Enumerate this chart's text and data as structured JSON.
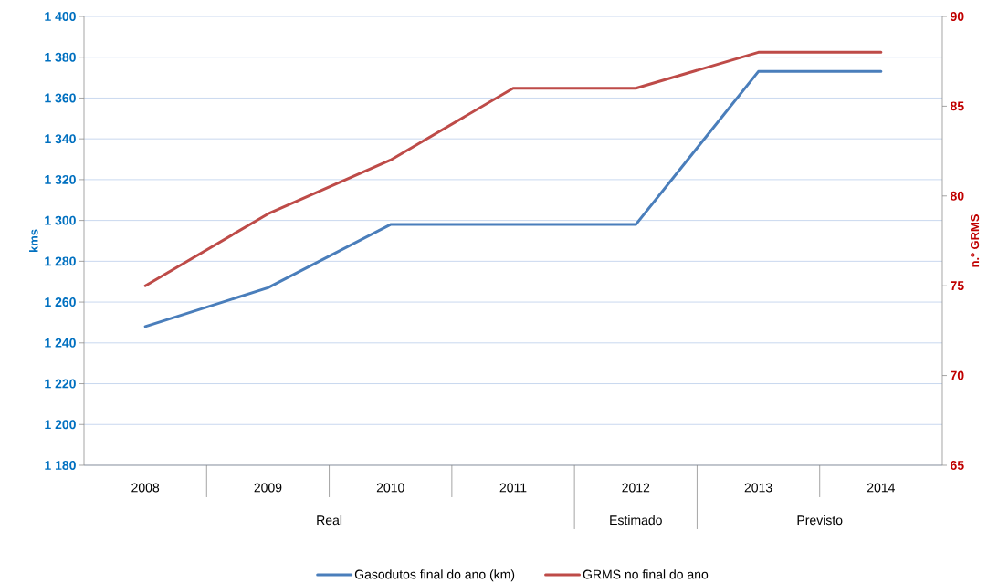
{
  "chart_data": {
    "type": "line",
    "categories": [
      "2008",
      "2009",
      "2010",
      "2011",
      "2012",
      "2013",
      "2014"
    ],
    "series": [
      {
        "name": "Gasodutos final do ano (km)",
        "color": "#4a7ebb",
        "values": [
          1248,
          1267,
          1298,
          1298,
          1298,
          1373,
          1373
        ]
      },
      {
        "name": "GRMS no final do ano",
        "color": "#be4b48",
        "values": [
          75,
          79,
          82,
          86,
          86,
          88,
          88
        ],
        "axis": "y2"
      }
    ],
    "ylabel": "kms",
    "y2label": "n.º GRMS",
    "ylim": [
      1180,
      1400
    ],
    "yticks": [
      {
        "value": 1180,
        "label": "1 180"
      },
      {
        "value": 1200,
        "label": "1 200"
      },
      {
        "value": 1220,
        "label": "1 220"
      },
      {
        "value": 1240,
        "label": "1 240"
      },
      {
        "value": 1260,
        "label": "1 260"
      },
      {
        "value": 1280,
        "label": "1 280"
      },
      {
        "value": 1300,
        "label": "1 300"
      },
      {
        "value": 1320,
        "label": "1 320"
      },
      {
        "value": 1340,
        "label": "1 340"
      },
      {
        "value": 1360,
        "label": "1 360"
      },
      {
        "value": 1380,
        "label": "1 380"
      },
      {
        "value": 1400,
        "label": "1 400"
      }
    ],
    "y2lim": [
      65,
      90
    ],
    "y2ticks": [
      65,
      70,
      75,
      80,
      85,
      90
    ],
    "grid": "y",
    "legend": "bottom",
    "marker": "none",
    "line_style": "solid",
    "annotations": [
      "Real",
      "Estimado",
      "Previsto"
    ]
  }
}
